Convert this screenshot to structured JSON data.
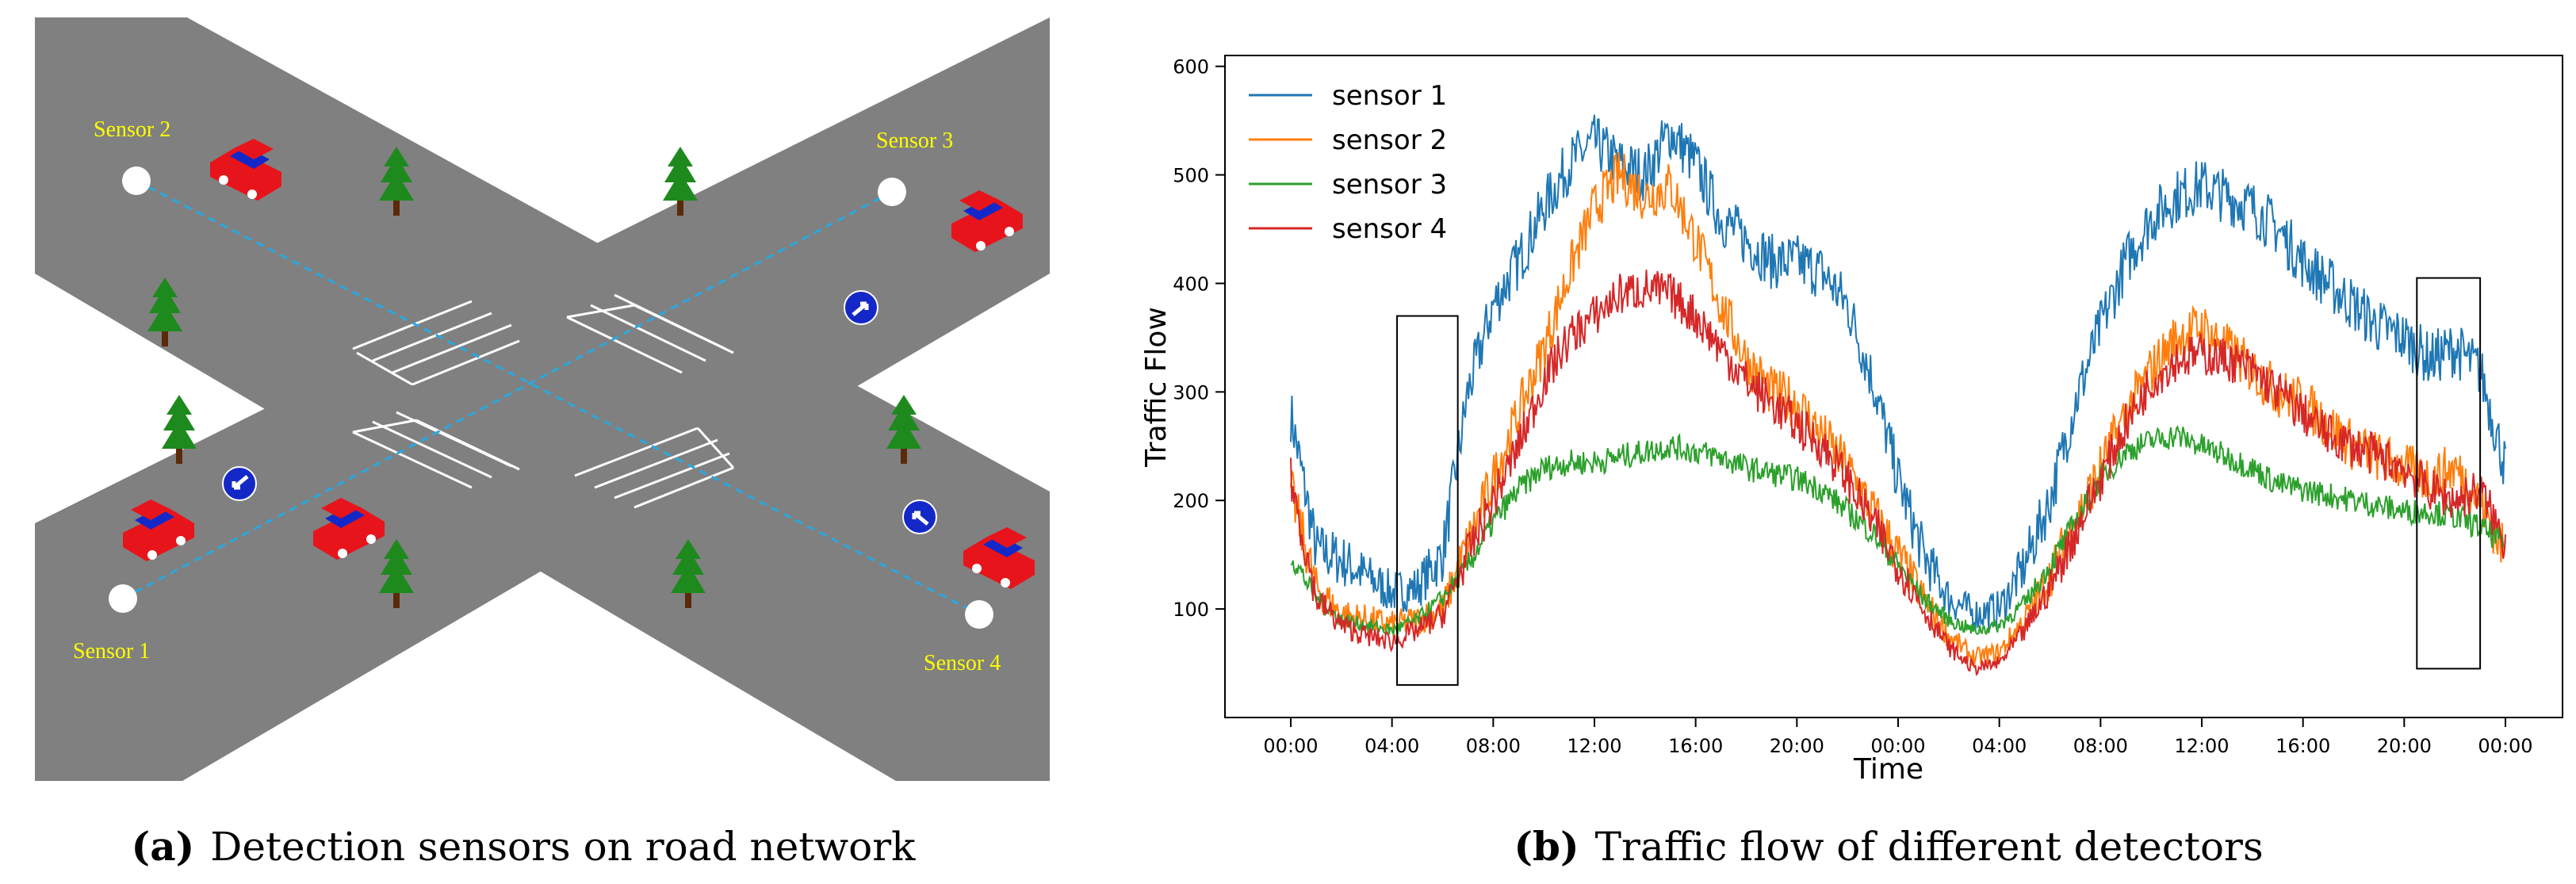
{
  "panel_a": {
    "caption_letter": "a",
    "caption_text": "Detection sensors on road network",
    "sensors": [
      {
        "id": 1,
        "label": "Sensor 1"
      },
      {
        "id": 2,
        "label": "Sensor 2"
      },
      {
        "id": 3,
        "label": "Sensor 3"
      },
      {
        "id": 4,
        "label": "Sensor 4"
      }
    ],
    "colors": {
      "road": "#808080",
      "sensor_label": "#ffff00",
      "sensor_dot": "#ffffff",
      "detection_line": "#29a8e0",
      "car_body": "#e8141b",
      "car_window": "#1428c8",
      "tree": "#1e8a1e",
      "trunk": "#5a2a0a",
      "sign": "#1428c8"
    }
  },
  "panel_b": {
    "caption_letter": "b",
    "caption_text": "Traffic flow of different detectors"
  },
  "chart_data": {
    "type": "line",
    "title": "",
    "xlabel": "Time",
    "ylabel": "Traffic Flow",
    "x_ticks": [
      "00:00",
      "04:00",
      "08:00",
      "12:00",
      "16:00",
      "20:00",
      "00:00",
      "04:00",
      "08:00",
      "12:00",
      "16:00",
      "20:00",
      "00:00"
    ],
    "x_range_hours": [
      0,
      48
    ],
    "ylim": [
      0,
      610
    ],
    "y_ticks": [
      100,
      200,
      300,
      400,
      500,
      600
    ],
    "legend_position": "top-left",
    "series": [
      {
        "name": "sensor 1",
        "color": "#1f77b4",
        "keypoints_hours": [
          0,
          1,
          2,
          3,
          4,
          5,
          6,
          7,
          8,
          9,
          10,
          11,
          12,
          13,
          14,
          15,
          16,
          17,
          18,
          19,
          20,
          21,
          22,
          23,
          24,
          25,
          26,
          27,
          28,
          29,
          30,
          31,
          32,
          33,
          34,
          35,
          36,
          37,
          38,
          39,
          40,
          41,
          42,
          43,
          44,
          45,
          46,
          47,
          48
        ],
        "values": [
          280,
          155,
          145,
          130,
          115,
          120,
          150,
          300,
          380,
          420,
          470,
          510,
          530,
          510,
          500,
          540,
          510,
          460,
          440,
          420,
          420,
          410,
          380,
          310,
          220,
          150,
          110,
          95,
          100,
          140,
          200,
          290,
          360,
          420,
          460,
          480,
          490,
          480,
          470,
          450,
          420,
          400,
          380,
          360,
          350,
          330,
          340,
          320,
          230
        ]
      },
      {
        "name": "sensor 2",
        "color": "#ff7f0e",
        "keypoints_hours": [
          0,
          1,
          2,
          3,
          4,
          5,
          6,
          7,
          8,
          9,
          10,
          11,
          12,
          13,
          14,
          15,
          16,
          17,
          18,
          19,
          20,
          21,
          22,
          23,
          24,
          25,
          26,
          27,
          28,
          29,
          30,
          31,
          32,
          33,
          34,
          35,
          36,
          37,
          38,
          39,
          40,
          41,
          42,
          43,
          44,
          45,
          46,
          47,
          48
        ],
        "values": [
          210,
          120,
          95,
          90,
          85,
          90,
          100,
          160,
          220,
          280,
          340,
          410,
          470,
          500,
          480,
          490,
          440,
          380,
          330,
          300,
          290,
          260,
          230,
          190,
          150,
          110,
          75,
          55,
          60,
          90,
          130,
          180,
          230,
          280,
          320,
          350,
          360,
          340,
          320,
          300,
          290,
          270,
          250,
          240,
          230,
          220,
          230,
          200,
          150
        ]
      },
      {
        "name": "sensor 3",
        "color": "#2ca02c",
        "keypoints_hours": [
          0,
          1,
          2,
          3,
          4,
          5,
          6,
          7,
          8,
          9,
          10,
          11,
          12,
          13,
          14,
          15,
          16,
          17,
          18,
          19,
          20,
          21,
          22,
          23,
          24,
          25,
          26,
          27,
          28,
          29,
          30,
          31,
          32,
          33,
          34,
          35,
          36,
          37,
          38,
          39,
          40,
          41,
          42,
          43,
          44,
          45,
          46,
          47,
          48
        ],
        "values": [
          150,
          110,
          90,
          85,
          80,
          90,
          110,
          140,
          180,
          210,
          230,
          235,
          235,
          240,
          245,
          250,
          245,
          240,
          230,
          225,
          220,
          210,
          190,
          170,
          140,
          110,
          90,
          80,
          85,
          105,
          140,
          180,
          220,
          245,
          255,
          260,
          250,
          240,
          230,
          215,
          210,
          205,
          200,
          195,
          190,
          190,
          185,
          175,
          160
        ]
      },
      {
        "name": "sensor 4",
        "color": "#d62728",
        "keypoints_hours": [
          0,
          1,
          2,
          3,
          4,
          5,
          6,
          7,
          8,
          9,
          10,
          11,
          12,
          13,
          14,
          15,
          16,
          17,
          18,
          19,
          20,
          21,
          22,
          23,
          24,
          25,
          26,
          27,
          28,
          29,
          30,
          31,
          32,
          33,
          34,
          35,
          36,
          37,
          38,
          39,
          40,
          41,
          42,
          43,
          44,
          45,
          46,
          47,
          48
        ],
        "values": [
          220,
          110,
          85,
          75,
          70,
          80,
          95,
          150,
          200,
          250,
          310,
          350,
          370,
          390,
          395,
          390,
          370,
          340,
          310,
          290,
          270,
          250,
          220,
          180,
          140,
          100,
          65,
          45,
          50,
          80,
          120,
          170,
          220,
          270,
          310,
          330,
          335,
          330,
          320,
          300,
          280,
          260,
          250,
          240,
          230,
          210,
          200,
          210,
          160
        ]
      }
    ],
    "annotations": [
      {
        "type": "box",
        "x_range_hours": [
          4.2,
          6.6
        ],
        "y_range": [
          30,
          370
        ]
      },
      {
        "type": "box",
        "x_range_hours": [
          44.5,
          47.0
        ],
        "y_range": [
          45,
          405
        ]
      }
    ]
  }
}
